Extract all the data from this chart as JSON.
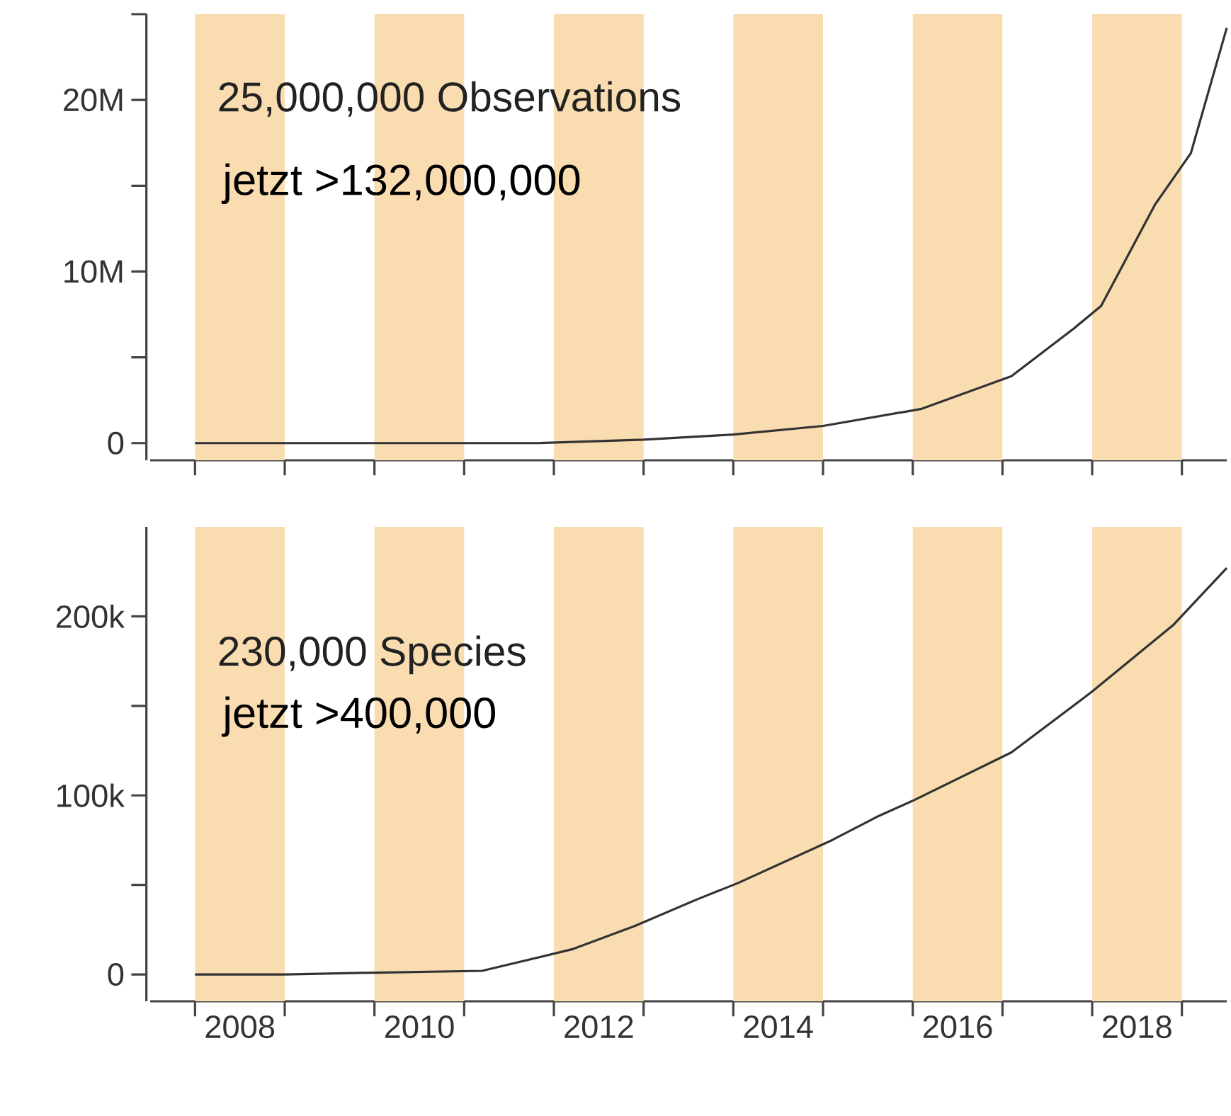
{
  "chart_data": [
    {
      "type": "line",
      "xlim": [
        2007.5,
        2019.5
      ],
      "ylim": [
        -1000000,
        25000000
      ],
      "tick_labels": "y",
      "xticks": [
        {
          "value": 2008,
          "label": null
        },
        {
          "value": 2009,
          "label": null
        },
        {
          "value": 2010,
          "label": null
        },
        {
          "value": 2011,
          "label": null
        },
        {
          "value": 2012,
          "label": null
        },
        {
          "value": 2013,
          "label": null
        },
        {
          "value": 2014,
          "label": null
        },
        {
          "value": 2015,
          "label": null
        },
        {
          "value": 2016,
          "label": null
        },
        {
          "value": 2017,
          "label": null
        },
        {
          "value": 2018,
          "label": null
        },
        {
          "value": 2019,
          "label": null
        }
      ],
      "yticks": [
        0,
        {
          "value": 5000000,
          "label": null
        },
        {
          "value": 10000000,
          "label": "10M"
        },
        {
          "value": 15000000,
          "label": null
        },
        {
          "value": 20000000,
          "label": "20M"
        },
        {
          "value": 25000000,
          "label": null
        }
      ],
      "bands": [
        {
          "axis": "x",
          "from": 2008,
          "to": 2009,
          "color": "#f9ddb1"
        },
        {
          "axis": "x",
          "from": 2010,
          "to": 2011,
          "color": "#f9ddb1"
        },
        {
          "axis": "x",
          "from": 2012,
          "to": 2013,
          "color": "#f9ddb1"
        },
        {
          "axis": "x",
          "from": 2014,
          "to": 2015,
          "color": "#f9ddb1"
        },
        {
          "axis": "x",
          "from": 2016,
          "to": 2017,
          "color": "#f9ddb1"
        },
        {
          "axis": "x",
          "from": 2018,
          "to": 2019,
          "color": "#f9ddb1"
        }
      ],
      "annotations": [
        "25,000,000 Observations",
        "jetzt >132,000,000"
      ],
      "series": [
        {
          "color": "#333333",
          "x": [
            2008,
            2011,
            2011.8,
            2013.0,
            2014.0,
            2015.0,
            2016.1,
            2017.1,
            2017.8,
            2018.1,
            2018.7,
            2019.1,
            2019.5
          ],
          "values": [
            0,
            0,
            0,
            200000,
            500000,
            1000000,
            2000000,
            3900000,
            6700000,
            8000000,
            13900000,
            16900000,
            24200000
          ]
        }
      ]
    },
    {
      "type": "line",
      "xlim": [
        2007.5,
        2019.5
      ],
      "ylim": [
        -15000,
        250000
      ],
      "xticks": [
        {
          "value": 2008,
          "label": null
        },
        {
          "value": 2009,
          "label": null
        },
        {
          "value": 2010,
          "label": null
        },
        {
          "value": 2011,
          "label": null
        },
        {
          "value": 2012,
          "label": null
        },
        {
          "value": 2013,
          "label": null
        },
        {
          "value": 2014,
          "label": null
        },
        {
          "value": 2015,
          "label": null
        },
        {
          "value": 2016,
          "label": null
        },
        {
          "value": 2017,
          "label": null
        },
        {
          "value": 2018,
          "label": null
        },
        {
          "value": 2019,
          "label": null
        },
        {
          "value": 2008.5,
          "label": "2008"
        },
        {
          "value": 2010.5,
          "label": "2010"
        },
        {
          "value": 2012.5,
          "label": "2012"
        },
        {
          "value": 2014.5,
          "label": "2014"
        },
        {
          "value": 2016.5,
          "label": "2016"
        },
        {
          "value": 2018.5,
          "label": "2018"
        }
      ],
      "yticks": [
        0,
        {
          "value": 50000,
          "label": null
        },
        {
          "value": 100000,
          "label": "100k"
        },
        {
          "value": 150000,
          "label": null
        },
        {
          "value": 200000,
          "label": "200k"
        }
      ],
      "bands": [
        {
          "axis": "x",
          "from": 2008,
          "to": 2009,
          "color": "#f9ddb1"
        },
        {
          "axis": "x",
          "from": 2010,
          "to": 2011,
          "color": "#f9ddb1"
        },
        {
          "axis": "x",
          "from": 2012,
          "to": 2013,
          "color": "#f9ddb1"
        },
        {
          "axis": "x",
          "from": 2014,
          "to": 2015,
          "color": "#f9ddb1"
        },
        {
          "axis": "x",
          "from": 2016,
          "to": 2017,
          "color": "#f9ddb1"
        },
        {
          "axis": "x",
          "from": 2018,
          "to": 2019,
          "color": "#f9ddb1"
        }
      ],
      "annotations": [
        "230,000 Species",
        "jetzt >400,000"
      ],
      "series": [
        {
          "color": "#333333",
          "x": [
            2008,
            2009,
            2010,
            2011.2,
            2012.2,
            2012.9,
            2013.6,
            2014.05,
            2015.1,
            2015.6,
            2016.0,
            2017.1,
            2018.0,
            2018.9,
            2019.5
          ],
          "values": [
            0,
            0,
            1000,
            2000,
            14000,
            27000,
            42000,
            51000,
            75000,
            88000,
            97000,
            124000,
            158000,
            195000,
            227000
          ]
        }
      ]
    }
  ]
}
